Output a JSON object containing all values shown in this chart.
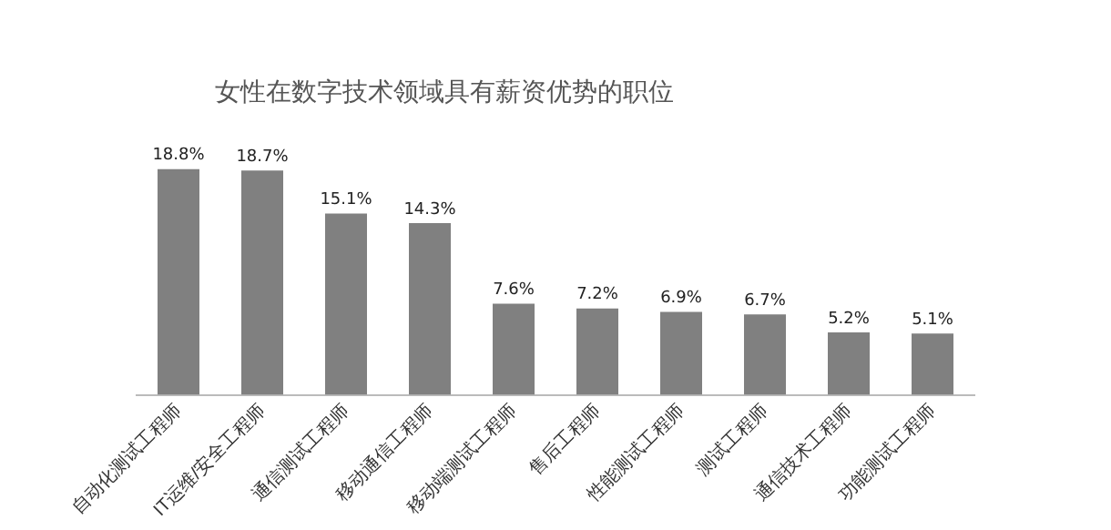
{
  "chart_data": {
    "type": "bar",
    "title": "女性在数字技术领域具有薪资优势的职位",
    "categories": [
      "自动化测试工程师",
      "IT运维/安全工程师",
      "通信测试工程师",
      "移动通信工程师",
      "移动端测试工程师",
      "售后工程师",
      "性能测试工程师",
      "测试工程师",
      "通信技术工程师",
      "功能测试工程师"
    ],
    "values": [
      18.8,
      18.7,
      15.1,
      14.3,
      7.6,
      7.2,
      6.9,
      6.7,
      5.2,
      5.1
    ],
    "value_labels": [
      "18.8%",
      "18.7%",
      "15.1%",
      "14.3%",
      "7.6%",
      "7.2%",
      "6.9%",
      "6.7%",
      "5.2%",
      "5.1%"
    ],
    "color": "#808080",
    "grid": false,
    "legend": false
  }
}
